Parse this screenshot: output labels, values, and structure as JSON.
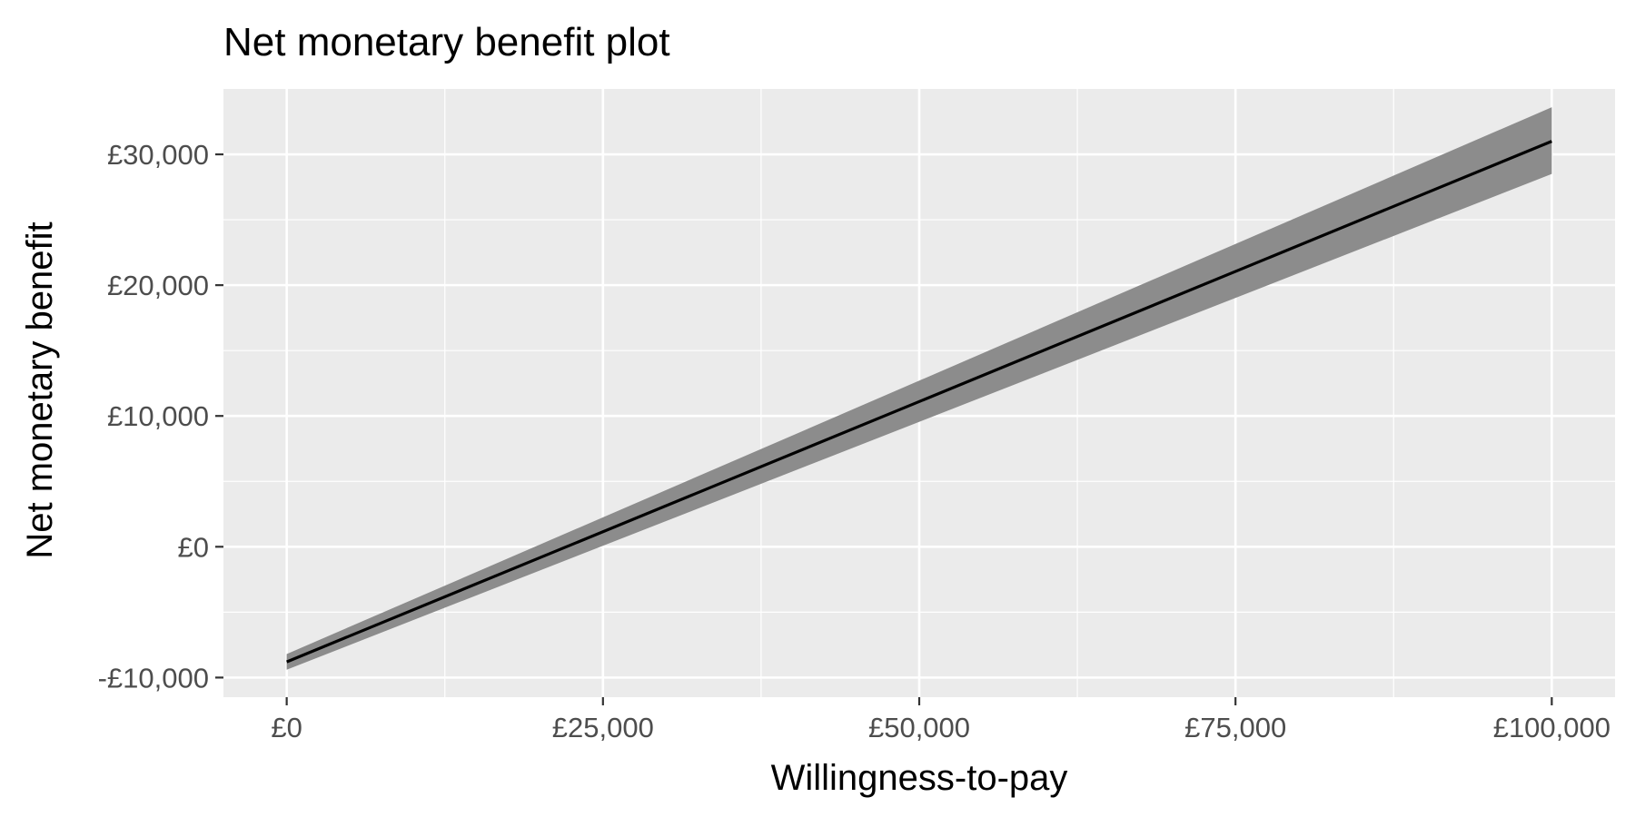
{
  "chart_data": {
    "type": "line",
    "title": "Net monetary benefit plot",
    "xlabel": "Willingness-to-pay",
    "ylabel": "Net monetary benefit",
    "xlim": [
      -5000,
      105000
    ],
    "ylim": [
      -11500,
      35000
    ],
    "x_ticks": [
      {
        "value": 0,
        "label": "£0"
      },
      {
        "value": 25000,
        "label": "£25,000"
      },
      {
        "value": 50000,
        "label": "£50,000"
      },
      {
        "value": 75000,
        "label": "£75,000"
      },
      {
        "value": 100000,
        "label": "£100,000"
      }
    ],
    "y_ticks": [
      {
        "value": -10000,
        "label": "-£10,000"
      },
      {
        "value": 0,
        "label": "£0"
      },
      {
        "value": 10000,
        "label": "£10,000"
      },
      {
        "value": 20000,
        "label": "£20,000"
      },
      {
        "value": 30000,
        "label": "£30,000"
      }
    ],
    "x_minor": [
      12500,
      37500,
      62500,
      87500
    ],
    "y_minor": [
      -5000,
      5000,
      15000,
      25000
    ],
    "grid": true,
    "legend": "none",
    "series": [
      {
        "x": [
          0,
          100000
        ],
        "y": [
          -8800,
          31000
        ],
        "lower": [
          -9400,
          28500
        ],
        "upper": [
          -8200,
          33600
        ]
      }
    ],
    "colors": {
      "panel": "#ebebeb",
      "grid": "#ffffff",
      "ribbon": "#8c8c8c",
      "line": "#000000",
      "tick_text": "#4d4d4d"
    }
  }
}
